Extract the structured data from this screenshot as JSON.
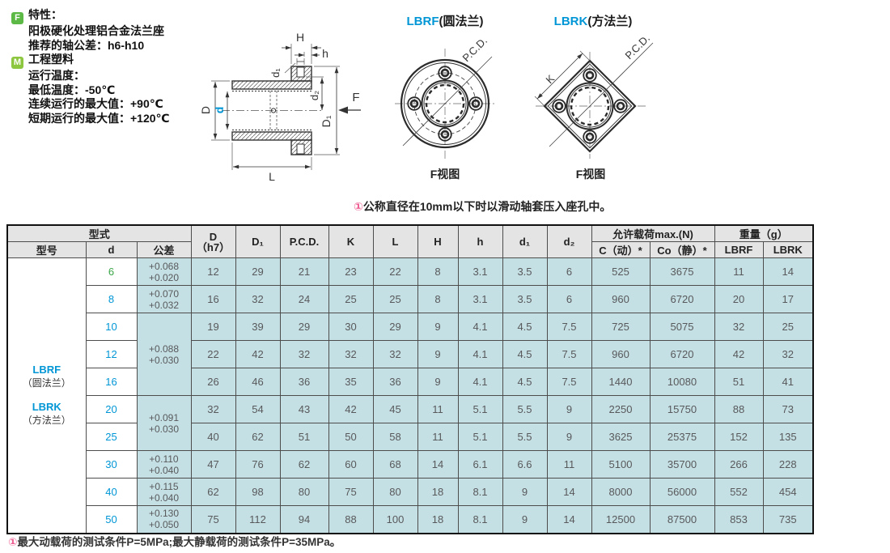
{
  "colors": {
    "accent_blue": "#0096d6",
    "green_value": "#3aa648",
    "pink_mark": "#ee5f93",
    "cell_bg": "#c5e0e4",
    "header_bg": "#e4e4e4",
    "badge_f": "#5cb946",
    "badge_m": "#8dc63f"
  },
  "features": {
    "f_badge": "F",
    "f_title": "特性：",
    "f_line1": "阳极硬化处理铝合金法兰座",
    "f_line2": "推荐的轴公差：h6-h10",
    "m_badge": "M",
    "m_title": "工程塑料",
    "m_line1": "运行温度：",
    "m_line2": "最低温度：-50℃",
    "m_line3": "连续运行的最大值：+90℃",
    "m_line4": "短期运行的最大值：+120℃"
  },
  "drawing": {
    "labels": {
      "D": "D",
      "d": "d",
      "L": "L",
      "H": "H",
      "h": "h",
      "d1": "d₁",
      "d2": "d₂",
      "D1": "D₁",
      "F": "F"
    }
  },
  "diagrams": {
    "lbrf": {
      "code": "LBRF",
      "suffix": "(圆法兰)",
      "caption": "F视图",
      "pcd": "P.C.D."
    },
    "lbrk": {
      "code": "LBRK",
      "suffix": "(方法兰)",
      "caption": "F视图",
      "pcd": "P.C.D.",
      "k": "K"
    }
  },
  "note": {
    "mark": "①",
    "text": "公称直径在10mm以下时以滑动轴套压入座孔中。"
  },
  "footnote": {
    "mark": "①",
    "text": "最大动载荷的测试条件P=5MPa;最大静载荷的测试条件P=35MPa。"
  },
  "table": {
    "headers": {
      "type_group": "型式",
      "model": "型号",
      "d": "d",
      "tolerance": "公差",
      "D_line1": "D",
      "D_line2": "（h7）",
      "D1": "D₁",
      "PCD": "P.C.D.",
      "K": "K",
      "L": "L",
      "H": "H",
      "h": "h",
      "d1": "d₁",
      "d2": "d₂",
      "load_group": "允许载荷max.(N)",
      "C_dyn": "C（动）*",
      "Co_stat": "Co（静）*",
      "weight_group": "重量（g）",
      "w_lbrf": "LBRF",
      "w_lbrk": "LBRK"
    },
    "model_cell": {
      "lbrf": "LBRF",
      "lbrf_sub": "（圆法兰）",
      "lbrk": "LBRK",
      "lbrk_sub": "（方法兰）"
    },
    "rows": [
      {
        "d": "6",
        "dColor": "green",
        "tol": [
          "+0.068",
          "+0.020"
        ],
        "tolSpan": 1,
        "v": [
          "12",
          "29",
          "21",
          "23",
          "22",
          "8",
          "3.1",
          "3.5",
          "6",
          "525",
          "3675",
          "11",
          "14"
        ]
      },
      {
        "d": "8",
        "tol": [
          "+0.070",
          "+0.032"
        ],
        "tolSpan": 1,
        "v": [
          "16",
          "32",
          "24",
          "25",
          "25",
          "8",
          "3.1",
          "3.5",
          "6",
          "960",
          "6720",
          "20",
          "17"
        ]
      },
      {
        "d": "10",
        "tol": [
          "+0.088",
          "+0.030"
        ],
        "tolSpan": 3,
        "v": [
          "19",
          "39",
          "29",
          "30",
          "29",
          "9",
          "4.1",
          "4.5",
          "7.5",
          "725",
          "5075",
          "32",
          "25"
        ]
      },
      {
        "d": "12",
        "v": [
          "22",
          "42",
          "32",
          "32",
          "32",
          "9",
          "4.1",
          "4.5",
          "7.5",
          "960",
          "6720",
          "42",
          "32"
        ]
      },
      {
        "d": "16",
        "v": [
          "26",
          "46",
          "36",
          "35",
          "36",
          "9",
          "4.1",
          "4.5",
          "7.5",
          "1440",
          "10080",
          "51",
          "41"
        ]
      },
      {
        "d": "20",
        "tol": [
          "+0.091",
          "+0.030"
        ],
        "tolSpan": 2,
        "v": [
          "32",
          "54",
          "43",
          "42",
          "45",
          "11",
          "5.1",
          "5.5",
          "9",
          "2250",
          "15750",
          "88",
          "73"
        ]
      },
      {
        "d": "25",
        "v": [
          "40",
          "62",
          "51",
          "50",
          "58",
          "11",
          "5.1",
          "5.5",
          "9",
          "3625",
          "25375",
          "152",
          "135"
        ]
      },
      {
        "d": "30",
        "tol": [
          "+0.110",
          "+0.040"
        ],
        "tolSpan": 1,
        "v": [
          "47",
          "76",
          "62",
          "60",
          "68",
          "14",
          "6.1",
          "6.6",
          "11",
          "5100",
          "35700",
          "266",
          "228"
        ]
      },
      {
        "d": "40",
        "tol": [
          "+0.115",
          "+0.040"
        ],
        "tolSpan": 1,
        "v": [
          "62",
          "98",
          "80",
          "75",
          "80",
          "18",
          "8.1",
          "9",
          "14",
          "8000",
          "56000",
          "552",
          "454"
        ]
      },
      {
        "d": "50",
        "tol": [
          "+0.130",
          "+0.050"
        ],
        "tolSpan": 1,
        "v": [
          "75",
          "112",
          "94",
          "88",
          "100",
          "18",
          "8.1",
          "9",
          "14",
          "12500",
          "87500",
          "853",
          "735"
        ]
      }
    ]
  }
}
